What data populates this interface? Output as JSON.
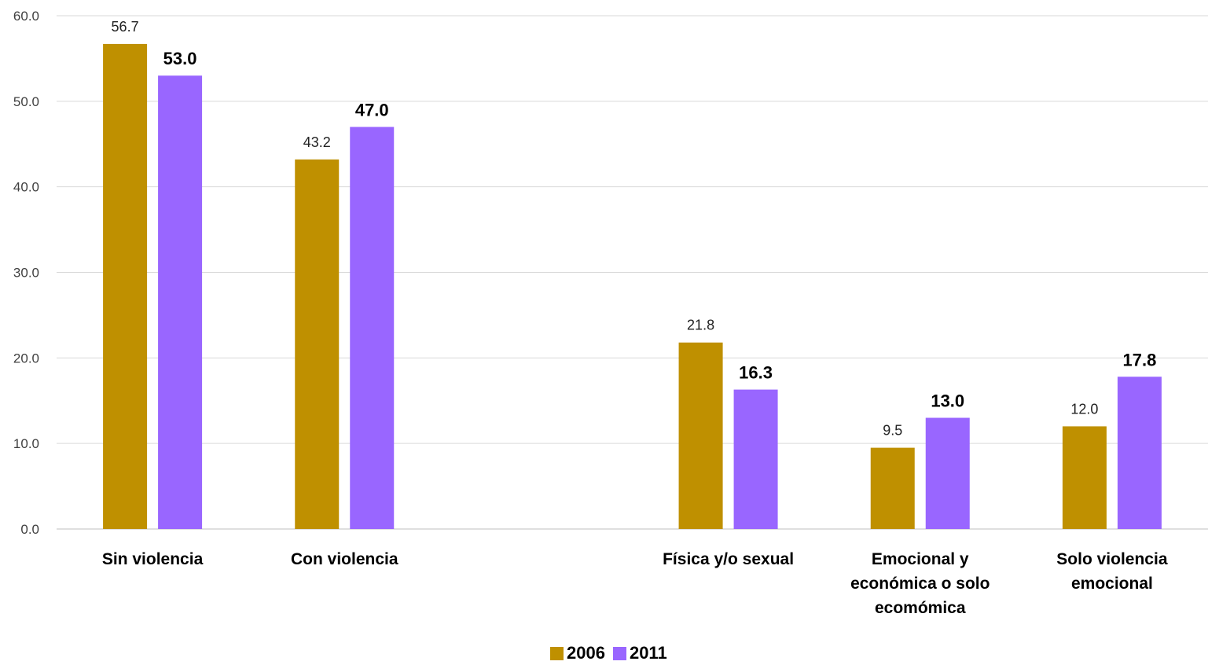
{
  "chart_data": {
    "type": "bar",
    "categories": [
      "Sin violencia",
      "Con violencia",
      "",
      "Física y/o sexual",
      "Emocional y económica o solo ecomómica",
      "Solo violencia emocional"
    ],
    "category_lines": [
      [
        "Sin violencia"
      ],
      [
        "Con violencia"
      ],
      [],
      [
        "Física y/o sexual"
      ],
      [
        "Emocional y",
        "económica o solo",
        "ecomómica"
      ],
      [
        "Solo violencia",
        "emocional"
      ]
    ],
    "series": [
      {
        "name": "2006",
        "color": "#BF9000",
        "values": [
          56.7,
          43.2,
          null,
          21.8,
          9.5,
          12.0
        ],
        "labels": [
          "56.7",
          "43.2",
          "",
          "21.8",
          "9.5",
          "12.0"
        ],
        "label_bold": false
      },
      {
        "name": "2011",
        "color": "#9966FF",
        "values": [
          53.0,
          47.0,
          null,
          16.3,
          13.0,
          17.8
        ],
        "labels": [
          "53.0",
          "47.0",
          "",
          "16.3",
          "13.0",
          "17.8"
        ],
        "label_bold": true
      }
    ],
    "ylim": [
      0,
      60
    ],
    "yticks": [
      "0.0",
      "10.0",
      "20.0",
      "30.0",
      "40.0",
      "50.0",
      "60.0"
    ],
    "grid": true,
    "legend_position": "bottom-center",
    "title": "",
    "xlabel": "",
    "ylabel": ""
  }
}
